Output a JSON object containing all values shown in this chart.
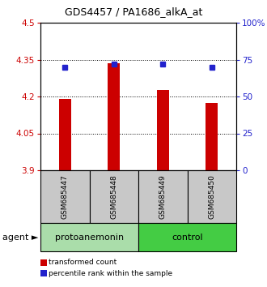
{
  "title": "GDS4457 / PA1686_alkA_at",
  "samples": [
    "GSM685447",
    "GSM685448",
    "GSM685449",
    "GSM685450"
  ],
  "bar_values": [
    4.19,
    4.335,
    4.225,
    4.175
  ],
  "dot_values_pct": [
    70,
    72,
    72,
    70
  ],
  "bar_color": "#cc0000",
  "dot_color": "#2222cc",
  "ylim_left": [
    3.9,
    4.5
  ],
  "ylim_right": [
    0,
    100
  ],
  "yticks_left": [
    3.9,
    4.05,
    4.2,
    4.35,
    4.5
  ],
  "yticks_right": [
    0,
    25,
    50,
    75,
    100
  ],
  "ytick_labels_left": [
    "3.9",
    "4.05",
    "4.2",
    "4.35",
    "4.5"
  ],
  "ytick_labels_right": [
    "0",
    "25",
    "50",
    "75",
    "100%"
  ],
  "hlines": [
    4.05,
    4.2,
    4.35
  ],
  "groups": [
    {
      "label": "protoanemonin",
      "samples": [
        0,
        1
      ],
      "color": "#aaddaa"
    },
    {
      "label": "control",
      "samples": [
        2,
        3
      ],
      "color": "#44cc44"
    }
  ],
  "agent_label": "agent ►",
  "legend_entries": [
    {
      "color": "#cc0000",
      "label": "transformed count"
    },
    {
      "color": "#2222cc",
      "label": "percentile rank within the sample"
    }
  ],
  "bar_width": 0.25,
  "sample_label_bg": "#c8c8c8",
  "title_fontsize": 9,
  "tick_fontsize": 7.5,
  "sample_fontsize": 6.5,
  "group_fontsize": 8,
  "legend_fontsize": 6.5
}
